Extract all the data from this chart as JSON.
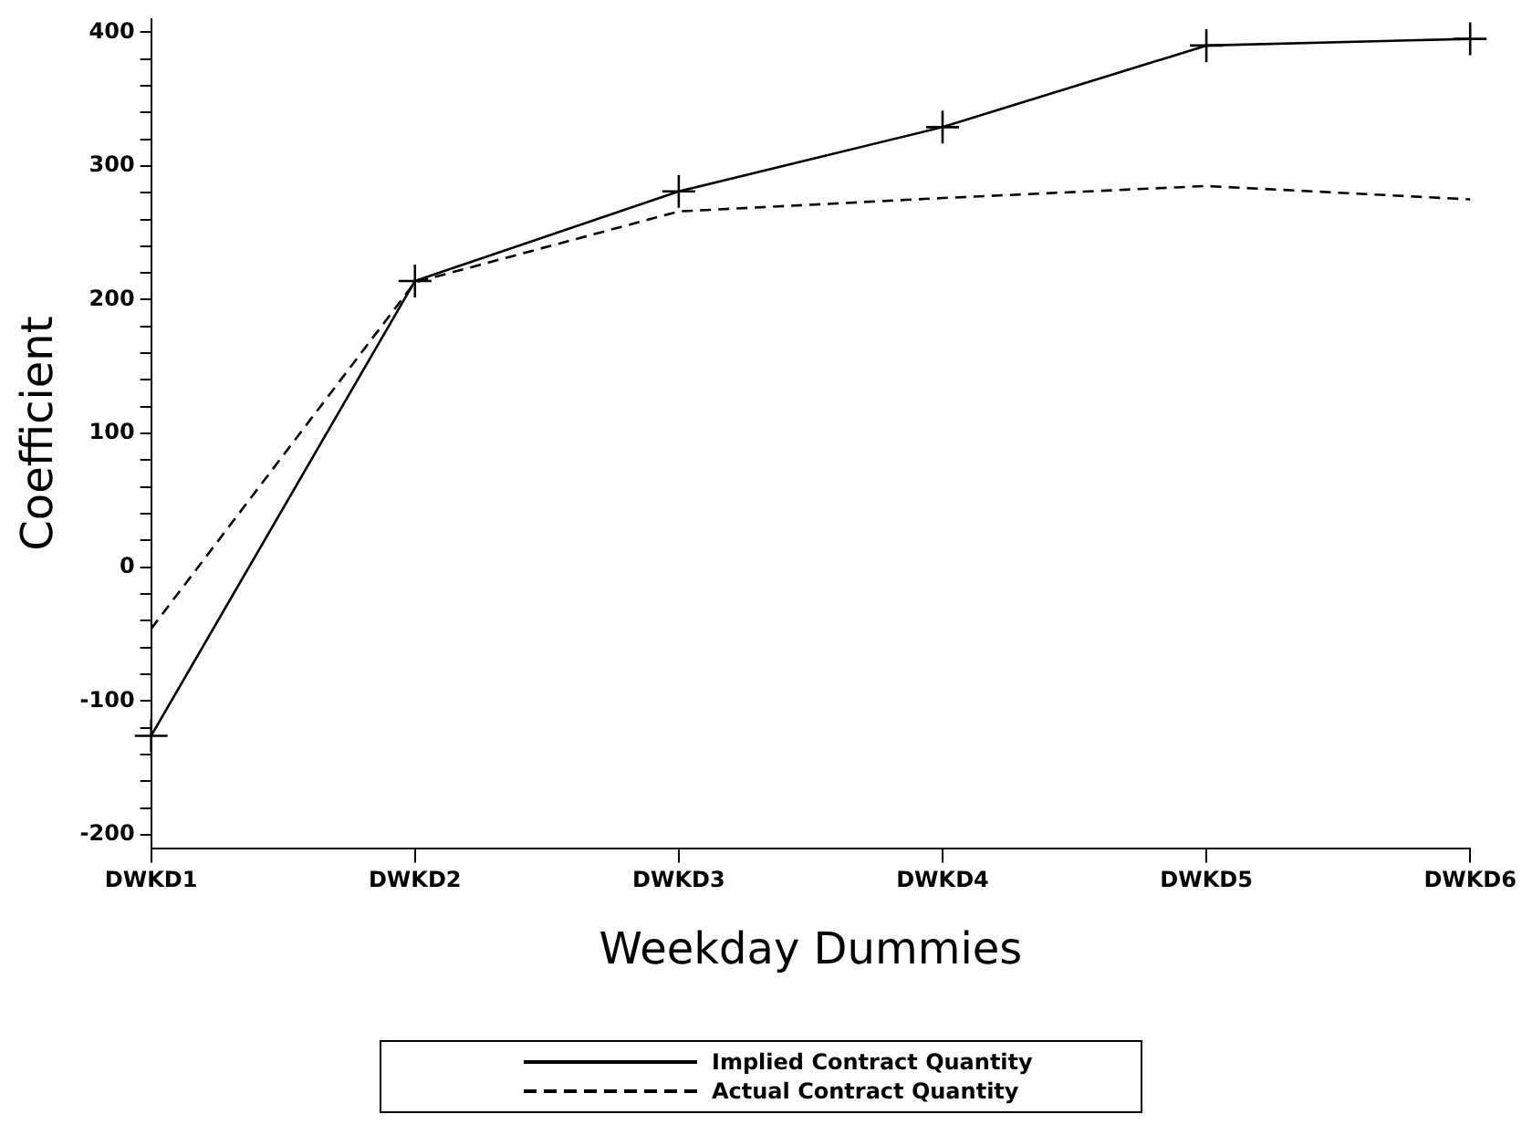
{
  "chart_data": {
    "type": "line",
    "xlabel": "Weekday Dummies",
    "ylabel": "Coefficient",
    "categories": [
      "DWKD1",
      "DWKD2",
      "DWKD3",
      "DWKD4",
      "DWKD5",
      "DWKD6"
    ],
    "series": [
      {
        "name": "Implied Contract Quantity",
        "color": "#000000",
        "marker": "cross",
        "line_style": "solid",
        "values": [
          -126,
          214,
          281,
          329,
          390,
          395
        ]
      },
      {
        "name": "Actual Contract Quantity",
        "color": "#000000",
        "marker": "none",
        "line_style": "dashed",
        "values": [
          -46,
          213,
          266,
          276,
          285,
          275
        ]
      }
    ],
    "ylim": [
      -210,
      410
    ],
    "yticks": [
      -200,
      {
        "value": -180,
        "label": null
      },
      {
        "value": -160,
        "label": null
      },
      {
        "value": -140,
        "label": null
      },
      {
        "value": -120,
        "label": null
      },
      -100,
      {
        "value": -80,
        "label": null
      },
      {
        "value": -60,
        "label": null
      },
      {
        "value": -40,
        "label": null
      },
      {
        "value": -20,
        "label": null
      },
      0,
      {
        "value": 20,
        "label": null
      },
      {
        "value": 40,
        "label": null
      },
      {
        "value": 60,
        "label": null
      },
      {
        "value": 80,
        "label": null
      },
      100,
      {
        "value": 120,
        "label": null
      },
      {
        "value": 140,
        "label": null
      },
      {
        "value": 160,
        "label": null
      },
      {
        "value": 180,
        "label": null
      },
      200,
      {
        "value": 220,
        "label": null
      },
      {
        "value": 240,
        "label": null
      },
      {
        "value": 260,
        "label": null
      },
      {
        "value": 280,
        "label": null
      },
      300,
      {
        "value": 320,
        "label": null
      },
      {
        "value": 340,
        "label": null
      },
      {
        "value": 360,
        "label": null
      },
      {
        "value": 380,
        "label": null
      },
      400
    ],
    "grid": false,
    "legend": "bottom"
  }
}
